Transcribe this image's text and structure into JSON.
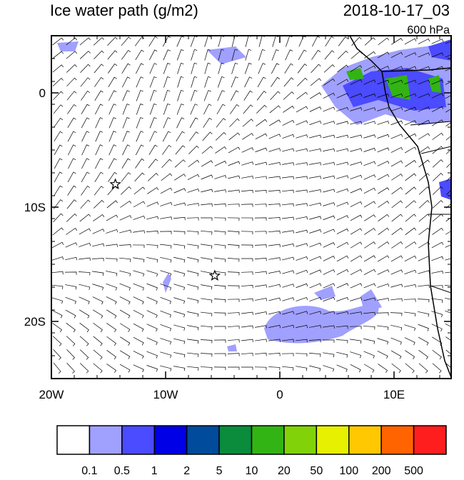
{
  "title": "Ice water path (g/m2)",
  "valid_time": "2018-10-17_03",
  "level": "600 hPa",
  "map": {
    "xlim": [
      -20,
      15
    ],
    "ylim": [
      -25,
      5
    ],
    "xticks": [
      {
        "value": -20,
        "label": "20W"
      },
      {
        "value": -10,
        "label": "10W"
      },
      {
        "value": 0,
        "label": "0"
      },
      {
        "value": 10,
        "label": "10E"
      }
    ],
    "yticks": [
      {
        "value": 0,
        "label": "0"
      },
      {
        "value": -10,
        "label": "10S"
      },
      {
        "value": -20,
        "label": "20S"
      }
    ],
    "markers": [
      {
        "lon": -14.4,
        "lat": -8
      },
      {
        "lon": -5.7,
        "lat": -16
      }
    ]
  },
  "colorbar": {
    "levels": [
      0.1,
      0.5,
      1,
      2,
      5,
      10,
      20,
      50,
      100,
      200,
      500
    ],
    "colors": [
      "#ffffff",
      "#a0a0ff",
      "#4b4bff",
      "#0000e6",
      "#004b9b",
      "#0a8c3c",
      "#32b414",
      "#82d20a",
      "#e6f000",
      "#ffc800",
      "#ff6400",
      "#ff1e1e"
    ]
  }
}
